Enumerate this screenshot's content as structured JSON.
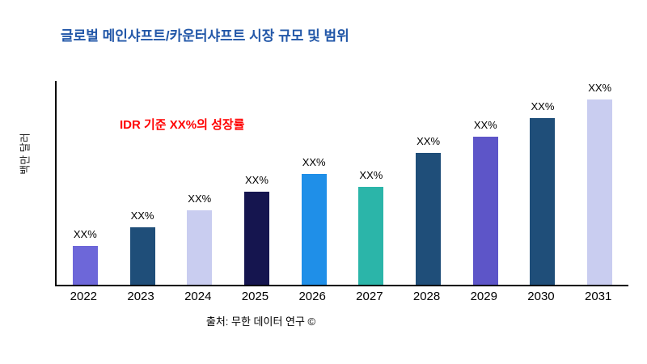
{
  "page": {
    "title_color": "#2257A8",
    "annotation_color": "#FF0000"
  },
  "chart_data": {
    "type": "bar",
    "title": "글로벌 메인샤프트/카운터샤프트 시장 규모 및 범위",
    "ylabel": "백만 달러",
    "xlabel": "",
    "annotation": "IDR 기준 XX%의 성장률",
    "source": "출처: 무한 데이터 연구 ©",
    "categories": [
      "2022",
      "2023",
      "2024",
      "2025",
      "2026",
      "2027",
      "2028",
      "2029",
      "2030",
      "2031"
    ],
    "values": [
      21,
      31,
      40,
      50,
      60,
      53,
      71,
      80,
      90,
      100
    ],
    "bar_labels": [
      "XX%",
      "XX%",
      "XX%",
      "XX%",
      "XX%",
      "XX%",
      "XX%",
      "XX%",
      "XX%",
      "XX%"
    ],
    "bar_colors": [
      "#6D67D9",
      "#1F4E79",
      "#C9CDF0",
      "#15154F",
      "#1F8FE8",
      "#2BB5A9",
      "#1F4E79",
      "#5D55C8",
      "#1F4E79",
      "#C9CDF0"
    ],
    "ylim": [
      0,
      110
    ],
    "grid": false,
    "legend": "none"
  }
}
